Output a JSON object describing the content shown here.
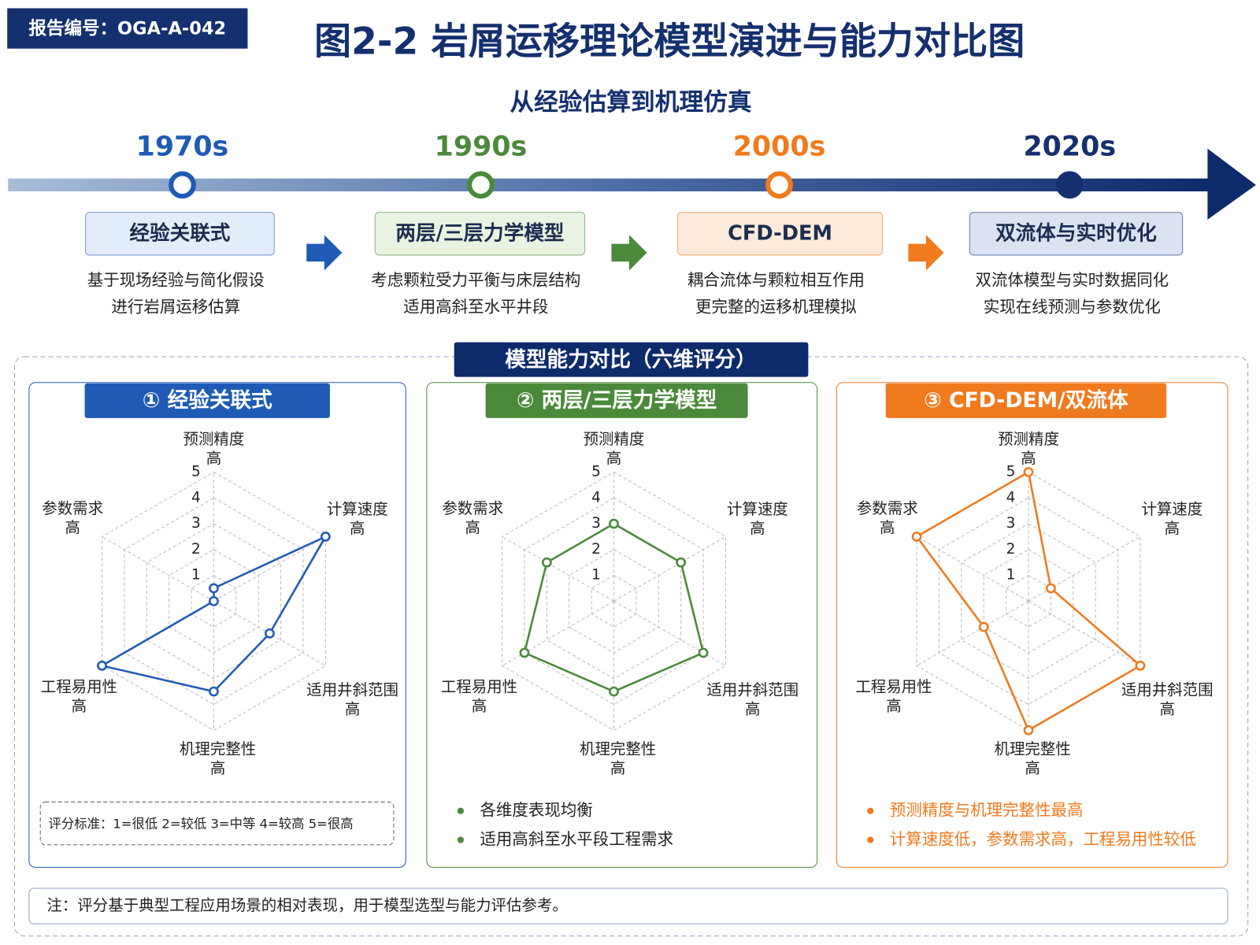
{
  "header": {
    "report_id": "报告编号：OGA-A-042",
    "title": "图2-2  岩屑运移理论模型演进与能力对比图",
    "subtitle": "从经验估算到机理仿真"
  },
  "timeline": [
    {
      "year": "1970s",
      "model": "经验关联式",
      "desc": [
        "基于现场经验与简化假设",
        "进行岩屑运移估算"
      ],
      "color": "#1f5bb5",
      "box_fill": "#e3edf9"
    },
    {
      "year": "1990s",
      "model": "两层/三层力学模型",
      "desc": [
        "考虑颗粒受力平衡与床层结构",
        "适用高斜至水平井段"
      ],
      "color": "#4a8a3a",
      "box_fill": "#e8f3e2"
    },
    {
      "year": "2000s",
      "model": "CFD-DEM",
      "desc": [
        "耦合流体与颗粒相互作用",
        "更完整的运移机理模拟"
      ],
      "color": "#f07a1e",
      "box_fill": "#fdeadb"
    },
    {
      "year": "2020s",
      "model": "双流体与实时优化",
      "desc": [
        "双流体模型与实时数据同化",
        "实现在线预测与参数优化"
      ],
      "color": "#14306e",
      "box_fill": "#dbe3f2"
    }
  ],
  "comparison_title": "模型能力对比（六维评分）",
  "chart_data": [
    {
      "type": "radar",
      "title": "① 经验关联式",
      "color": "#1f5bb5",
      "categories": [
        "预测精度",
        "计算速度",
        "适用井斜范围",
        "机理完整性",
        "工程易用性",
        "参数需求"
      ],
      "category_sublabel": "高",
      "values": [
        0.5,
        5,
        2.5,
        3.5,
        5,
        0
      ],
      "rlim": [
        0,
        5
      ],
      "rticks": [
        1,
        2,
        3,
        4,
        5
      ],
      "scale_note": "评分标准：1=很低    2=较低    3=中等    4=较高    5=很高"
    },
    {
      "type": "radar",
      "title": "② 两层/三层力学模型",
      "color": "#4a8a3a",
      "categories": [
        "预测精度",
        "计算速度",
        "适用井斜范围",
        "机理完整性",
        "工程易用性",
        "参数需求"
      ],
      "category_sublabel": "高",
      "values": [
        3,
        3,
        4,
        3.5,
        4,
        3
      ],
      "rlim": [
        0,
        5
      ],
      "rticks": [
        1,
        2,
        3,
        4,
        5
      ],
      "notes": [
        "各维度表现均衡",
        "适用高斜至水平段工程需求"
      ]
    },
    {
      "type": "radar",
      "title": "③ CFD-DEM/双流体",
      "color": "#f07a1e",
      "categories": [
        "预测精度",
        "计算速度",
        "适用井斜范围",
        "机理完整性",
        "工程易用性",
        "参数需求"
      ],
      "category_sublabel": "高",
      "values": [
        5,
        1,
        5,
        5,
        2,
        5
      ],
      "rlim": [
        0,
        5
      ],
      "rticks": [
        1,
        2,
        3,
        4,
        5
      ],
      "notes": [
        "预测精度与机理完整性最高",
        "计算速度低，参数需求高，工程易用性较低"
      ]
    }
  ],
  "footnote": "注：评分基于典型工程应用场景的相对表现，用于模型选型与能力评估参考。"
}
